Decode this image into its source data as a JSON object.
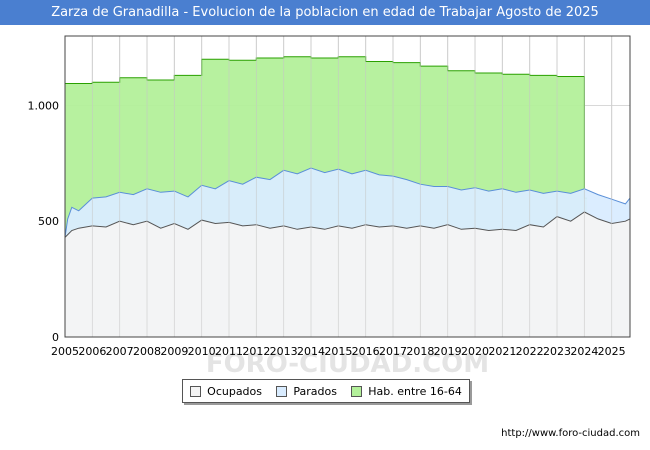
{
  "chart_data": {
    "type": "area",
    "title": "Zarza de Granadilla - Evolucion de la poblacion en edad de Trabajar Agosto de 2025",
    "xlabel": "",
    "ylabel": "",
    "ylim": [
      0,
      1300
    ],
    "xlim": [
      2005,
      2025.67
    ],
    "y_ticks": [
      0,
      500,
      1000
    ],
    "y_tick_labels": [
      "0",
      "500",
      "1.000"
    ],
    "x_ticks": [
      "2005",
      "2006",
      "2007",
      "2008",
      "2009",
      "2010",
      "2011",
      "2012",
      "2013",
      "2014",
      "2015",
      "2016",
      "2017",
      "2018",
      "2019",
      "2020",
      "2021",
      "2022",
      "2023",
      "2024",
      "2025"
    ],
    "grid": true,
    "legend_position": "bottom",
    "watermark": "FORO-CIUDAD.COM",
    "series": [
      {
        "name": "Hab. entre 16-64",
        "color": "#b3f09a",
        "line_color": "#2aa000",
        "step": true,
        "x": [
          2005,
          2006,
          2007,
          2008,
          2009,
          2010,
          2011,
          2012,
          2013,
          2014,
          2015,
          2016,
          2017,
          2018,
          2019,
          2020,
          2021,
          2022,
          2023,
          2024
        ],
        "values": [
          1095,
          1100,
          1120,
          1110,
          1130,
          1200,
          1195,
          1205,
          1210,
          1205,
          1210,
          1190,
          1185,
          1170,
          1150,
          1140,
          1135,
          1130,
          1125,
          600
        ]
      },
      {
        "name": "Parados",
        "color": "#d9ecff",
        "line_color": "#5a8fd8",
        "x": [
          2005,
          2005.1,
          2005.25,
          2005.5,
          2006,
          2006.5,
          2007,
          2007.5,
          2008,
          2008.5,
          2009,
          2009.5,
          2010,
          2010.5,
          2011,
          2011.5,
          2012,
          2012.5,
          2013,
          2013.5,
          2014,
          2014.5,
          2015,
          2015.5,
          2016,
          2016.5,
          2017,
          2017.5,
          2018,
          2018.5,
          2019,
          2019.5,
          2020,
          2020.5,
          2021,
          2021.5,
          2022,
          2022.5,
          2023,
          2023.5,
          2024,
          2024.5,
          2025,
          2025.5,
          2025.67
        ],
        "values": [
          430,
          510,
          560,
          545,
          600,
          605,
          625,
          615,
          640,
          625,
          630,
          605,
          655,
          640,
          675,
          660,
          690,
          680,
          720,
          705,
          730,
          710,
          725,
          705,
          720,
          700,
          695,
          680,
          660,
          650,
          650,
          635,
          645,
          630,
          640,
          625,
          635,
          620,
          630,
          620,
          640,
          615,
          595,
          575,
          600
        ]
      },
      {
        "name": "Ocupados",
        "color": "#f4f4f4",
        "line_color": "#555555",
        "x": [
          2005,
          2005.25,
          2005.5,
          2006,
          2006.5,
          2007,
          2007.5,
          2008,
          2008.5,
          2009,
          2009.5,
          2010,
          2010.5,
          2011,
          2011.5,
          2012,
          2012.5,
          2013,
          2013.5,
          2014,
          2014.5,
          2015,
          2015.5,
          2016,
          2016.5,
          2017,
          2017.5,
          2018,
          2018.5,
          2019,
          2019.5,
          2020,
          2020.5,
          2021,
          2021.5,
          2022,
          2022.5,
          2023,
          2023.5,
          2024,
          2024.5,
          2025,
          2025.5,
          2025.67
        ],
        "values": [
          430,
          460,
          470,
          480,
          475,
          500,
          485,
          500,
          470,
          490,
          465,
          505,
          490,
          495,
          480,
          485,
          470,
          480,
          465,
          475,
          465,
          480,
          470,
          485,
          475,
          480,
          470,
          480,
          470,
          485,
          465,
          470,
          460,
          465,
          460,
          485,
          475,
          520,
          500,
          540,
          510,
          490,
          500,
          510
        ]
      }
    ]
  },
  "legend": {
    "items": [
      {
        "label": "Ocupados",
        "color": "#f4f4f4"
      },
      {
        "label": "Parados",
        "color": "#d9ecff"
      },
      {
        "label": "Hab. entre 16-64",
        "color": "#b3f09a"
      }
    ]
  },
  "footer": {
    "url": "http://www.foro-ciudad.com"
  }
}
